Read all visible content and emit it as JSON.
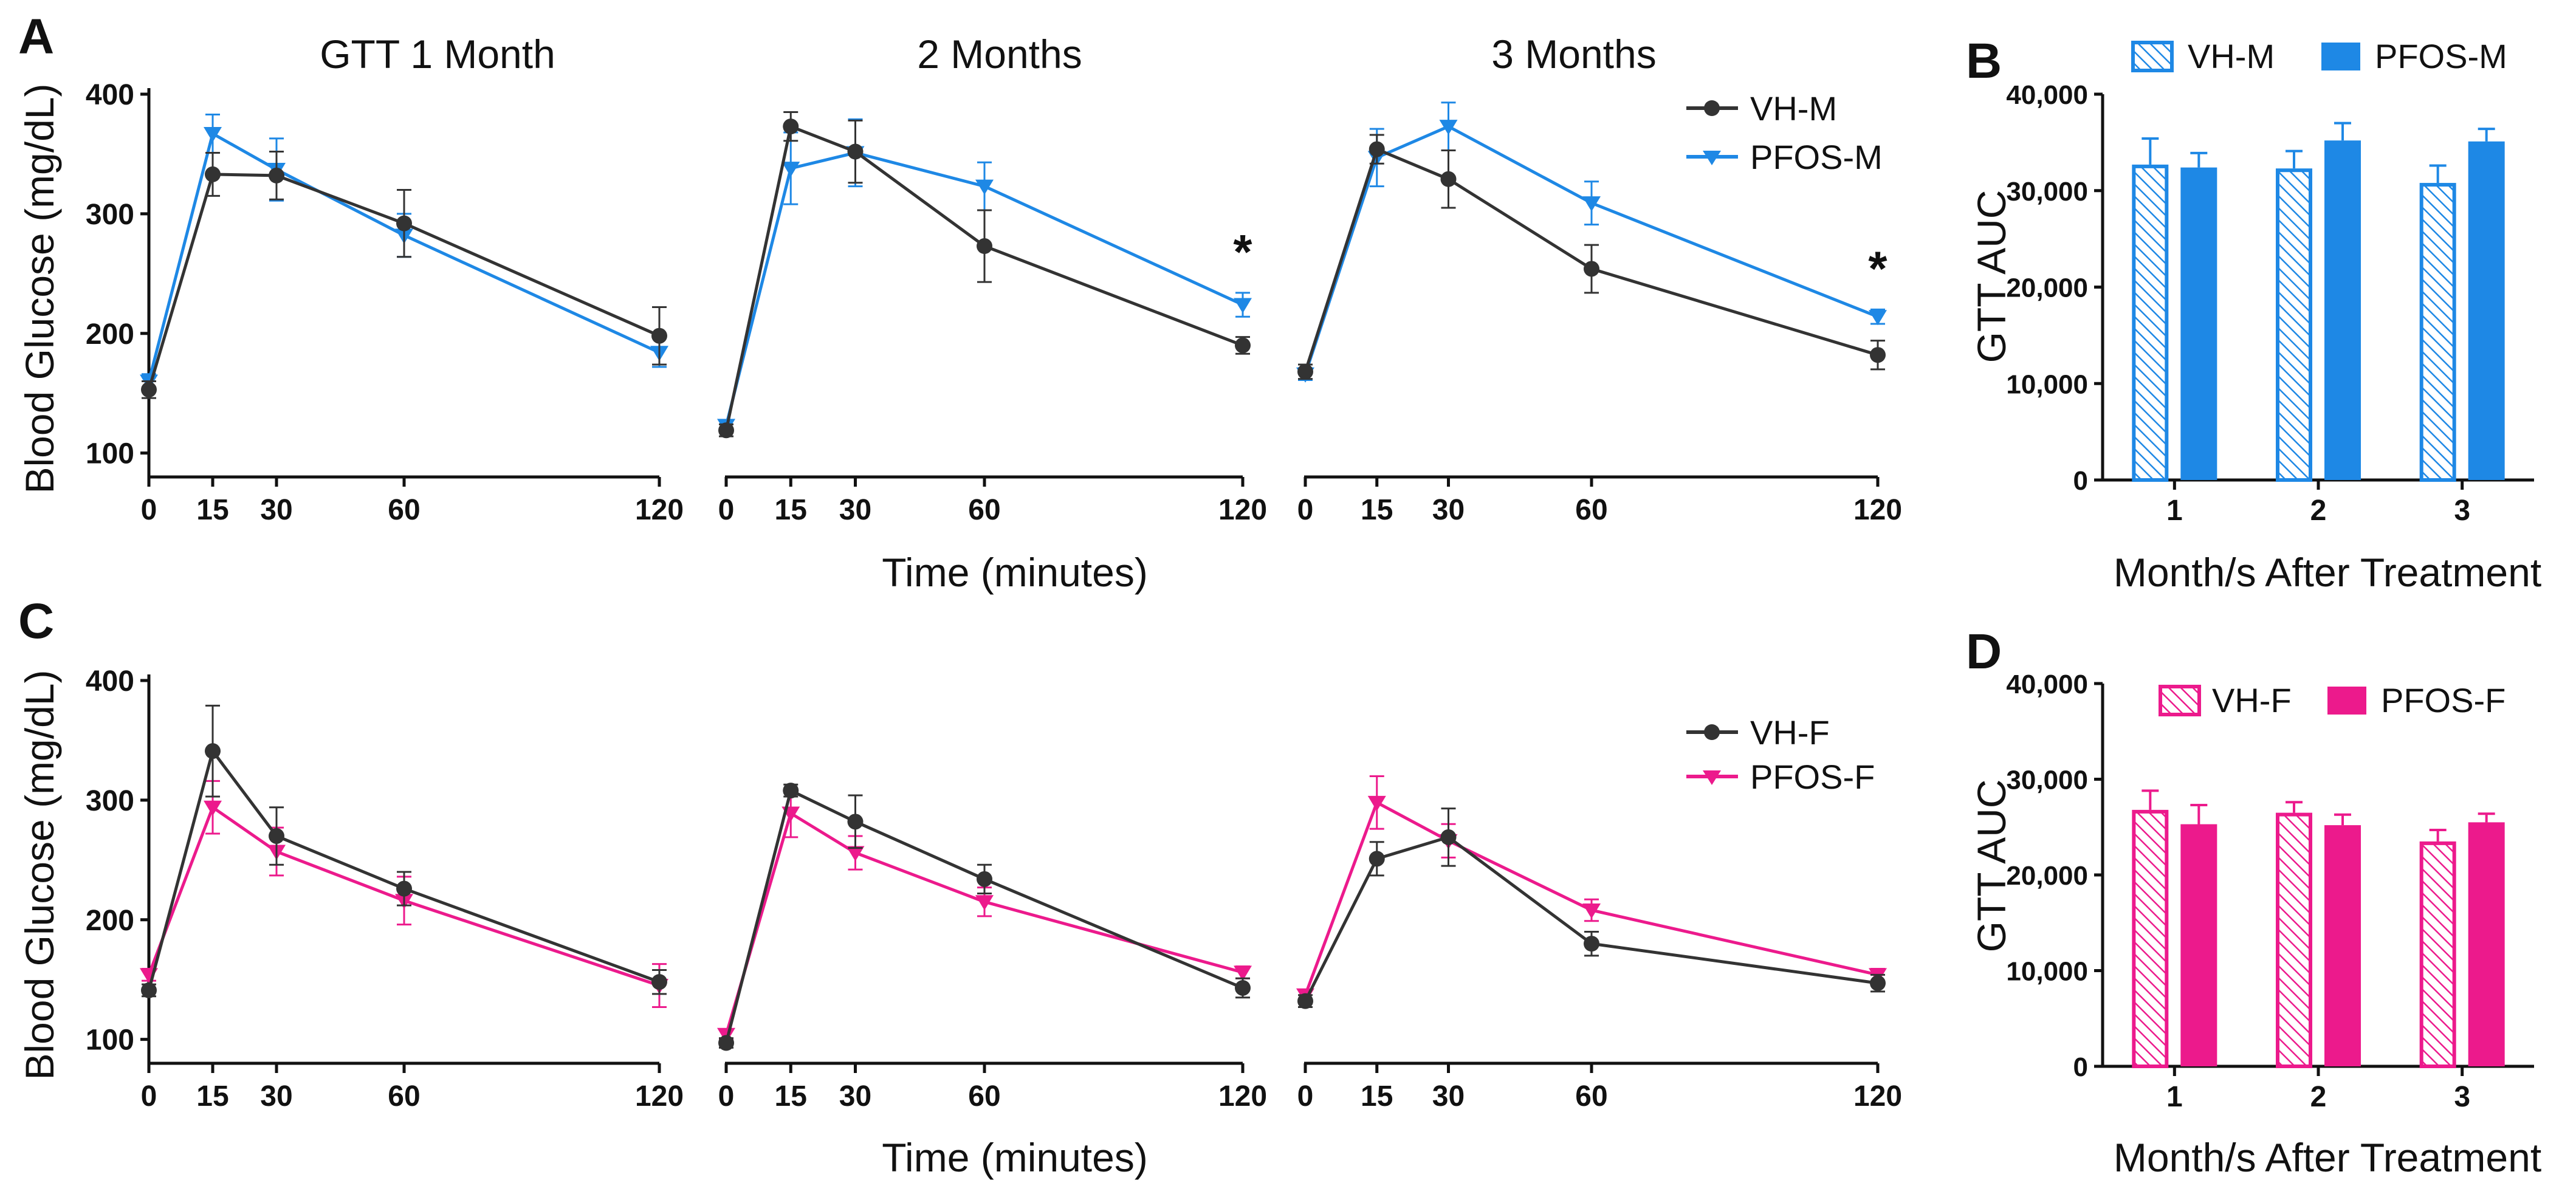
{
  "figure": {
    "letters": {
      "A": "A",
      "B": "B",
      "C": "C",
      "D": "D"
    },
    "x_label_time": "Time (minutes)",
    "y_label_glucose": "Blood Glucose (mg/dL)",
    "y_label_auc": "GTT AUC",
    "x_label_month": "Month/s After Treatment",
    "legend": {
      "vhm": "VH-M",
      "pfosm": "PFOS-M",
      "vhf": "VH-F",
      "pfosf": "PFOS-F"
    },
    "colors": {
      "vh": "#333333",
      "pfos_m": "#1E88E5",
      "pfos_f": "#EC1A8C"
    },
    "significance": "*"
  },
  "chart_data": [
    {
      "id": "A1",
      "type": "line",
      "title": "GTT 1 Month",
      "x": [
        0,
        15,
        30,
        60,
        120
      ],
      "xlim": [
        0,
        120
      ],
      "ylim": [
        80,
        400
      ],
      "yticks": [
        100,
        200,
        300,
        400
      ],
      "series": [
        {
          "name": "VH-M",
          "values": [
            153,
            333,
            332,
            292,
            198
          ],
          "errors": [
            7,
            18,
            20,
            28,
            24
          ]
        },
        {
          "name": "PFOS-M",
          "values": [
            160,
            367,
            337,
            282,
            184
          ],
          "errors": [
            6,
            16,
            26,
            18,
            12
          ]
        }
      ],
      "significant_x": []
    },
    {
      "id": "A2",
      "type": "line",
      "title": "2 Months",
      "x": [
        0,
        15,
        30,
        60,
        120
      ],
      "xlim": [
        0,
        120
      ],
      "ylim": [
        80,
        400
      ],
      "yticks": [],
      "series": [
        {
          "name": "VH-M",
          "values": [
            119,
            373,
            352,
            273,
            190
          ],
          "errors": [
            5,
            12,
            26,
            30,
            7
          ]
        },
        {
          "name": "PFOS-M",
          "values": [
            123,
            338,
            351,
            323,
            224
          ],
          "errors": [
            4,
            30,
            28,
            20,
            10
          ]
        }
      ],
      "significant_x": [
        120
      ]
    },
    {
      "id": "A3",
      "type": "line",
      "title": "3 Months",
      "x": [
        0,
        15,
        30,
        60,
        120
      ],
      "xlim": [
        0,
        120
      ],
      "ylim": [
        80,
        400
      ],
      "yticks": [],
      "series": [
        {
          "name": "VH-M",
          "values": [
            168,
            354,
            329,
            254,
            182
          ],
          "errors": [
            6,
            12,
            24,
            20,
            12
          ]
        },
        {
          "name": "PFOS-M",
          "values": [
            166,
            347,
            373,
            309,
            214
          ],
          "errors": [
            5,
            24,
            20,
            18,
            6
          ]
        }
      ],
      "significant_x": [
        120
      ]
    },
    {
      "id": "B",
      "type": "bar",
      "categories": [
        "1",
        "2",
        "3"
      ],
      "ylim": [
        0,
        40000
      ],
      "ytick_labels": [
        "0",
        "10,000",
        "20,000",
        "30,000",
        "40,000"
      ],
      "series": [
        {
          "name": "VH-M",
          "values": [
            32700,
            32300,
            30800
          ],
          "errors": [
            2700,
            1800,
            1800
          ]
        },
        {
          "name": "PFOS-M",
          "values": [
            32400,
            35200,
            35100
          ],
          "errors": [
            1500,
            1800,
            1300
          ]
        }
      ]
    },
    {
      "id": "C1",
      "type": "line",
      "title": "",
      "x": [
        0,
        15,
        30,
        60,
        120
      ],
      "xlim": [
        0,
        120
      ],
      "ylim": [
        80,
        400
      ],
      "yticks": [
        100,
        200,
        300,
        400
      ],
      "series": [
        {
          "name": "VH-F",
          "values": [
            141,
            341,
            270,
            226,
            148
          ],
          "errors": [
            5,
            38,
            24,
            14,
            10
          ]
        },
        {
          "name": "PFOS-F",
          "values": [
            154,
            294,
            257,
            216,
            145
          ],
          "errors": [
            5,
            22,
            20,
            20,
            18
          ]
        }
      ],
      "significant_x": []
    },
    {
      "id": "C2",
      "type": "line",
      "title": "",
      "x": [
        0,
        15,
        30,
        60,
        120
      ],
      "xlim": [
        0,
        120
      ],
      "ylim": [
        80,
        400
      ],
      "yticks": [],
      "series": [
        {
          "name": "VH-F",
          "values": [
            97,
            308,
            282,
            234,
            143
          ],
          "errors": [
            4,
            5,
            22,
            12,
            8
          ]
        },
        {
          "name": "PFOS-F",
          "values": [
            104,
            289,
            256,
            215,
            156
          ],
          "errors": [
            4,
            20,
            14,
            12,
            5
          ]
        }
      ],
      "significant_x": []
    },
    {
      "id": "C3",
      "type": "line",
      "title": "",
      "x": [
        0,
        15,
        30,
        60,
        120
      ],
      "xlim": [
        0,
        120
      ],
      "ylim": [
        80,
        400
      ],
      "yticks": [],
      "series": [
        {
          "name": "VH-F",
          "values": [
            132,
            251,
            269,
            180,
            147
          ],
          "errors": [
            5,
            14,
            24,
            10,
            7
          ]
        },
        {
          "name": "PFOS-F",
          "values": [
            137,
            298,
            266,
            208,
            154
          ],
          "errors": [
            4,
            22,
            14,
            9,
            5
          ]
        }
      ],
      "significant_x": []
    },
    {
      "id": "D",
      "type": "bar",
      "categories": [
        "1",
        "2",
        "3"
      ],
      "ylim": [
        0,
        40000
      ],
      "ytick_labels": [
        "0",
        "10,000",
        "20,000",
        "30,000",
        "40,000"
      ],
      "series": [
        {
          "name": "VH-F",
          "values": [
            26800,
            26500,
            23500
          ],
          "errors": [
            2000,
            1100,
            1200
          ]
        },
        {
          "name": "PFOS-F",
          "values": [
            25300,
            25200,
            25500
          ],
          "errors": [
            2000,
            1100,
            900
          ]
        }
      ]
    }
  ]
}
